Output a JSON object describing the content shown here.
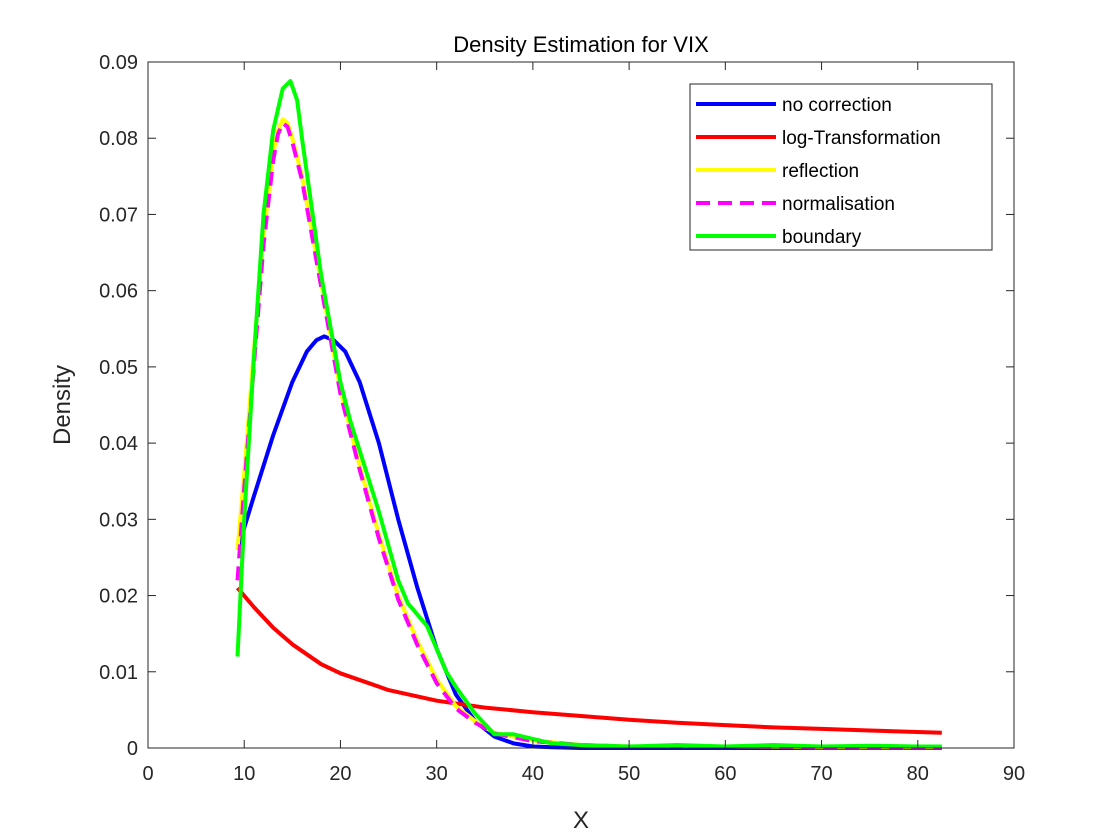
{
  "chart_data": {
    "type": "line",
    "title": "Density Estimation for VIX",
    "xlabel": "X",
    "ylabel": "Density",
    "xlim": [
      0,
      90
    ],
    "ylim": [
      0,
      0.09
    ],
    "xticks": [
      0,
      10,
      20,
      30,
      40,
      50,
      60,
      70,
      80,
      90
    ],
    "yticks": [
      0,
      0.01,
      0.02,
      0.03,
      0.04,
      0.05,
      0.06,
      0.07,
      0.08,
      0.09
    ],
    "xtick_labels": [
      "0",
      "10",
      "20",
      "30",
      "40",
      "50",
      "60",
      "70",
      "80",
      "90"
    ],
    "ytick_labels": [
      "0",
      "0.01",
      "0.02",
      "0.03",
      "0.04",
      "0.05",
      "0.06",
      "0.07",
      "0.08",
      "0.09"
    ],
    "grid": false,
    "legend_position": "top-right",
    "series": [
      {
        "name": "no correction",
        "color": "#0000ff",
        "dash": "solid",
        "x": [
          9.3,
          11,
          13,
          15,
          16.5,
          17.5,
          18.3,
          19.3,
          20.5,
          22,
          24,
          26,
          28,
          30,
          32,
          34,
          36,
          38,
          40,
          42,
          45,
          50,
          60,
          70,
          82.5
        ],
        "y": [
          0.026,
          0.033,
          0.041,
          0.048,
          0.052,
          0.0535,
          0.054,
          0.0535,
          0.052,
          0.048,
          0.04,
          0.03,
          0.021,
          0.013,
          0.007,
          0.0035,
          0.0015,
          0.0006,
          0.0002,
          0.0001,
          0.0,
          0.0,
          0.0,
          0.0,
          0.0
        ]
      },
      {
        "name": "log-Transformation",
        "color": "#ff0000",
        "dash": "solid",
        "x": [
          9.3,
          11,
          13,
          15,
          18,
          20,
          25,
          30,
          35,
          40,
          45,
          50,
          55,
          60,
          65,
          70,
          75,
          82.5
        ],
        "y": [
          0.021,
          0.0185,
          0.0158,
          0.0136,
          0.011,
          0.0098,
          0.0076,
          0.0062,
          0.0053,
          0.0047,
          0.0042,
          0.0037,
          0.0033,
          0.003,
          0.0027,
          0.0025,
          0.0023,
          0.002
        ]
      },
      {
        "name": "reflection",
        "color": "#ffff00",
        "dash": "solid",
        "x": [
          9.3,
          10,
          11,
          12,
          13,
          13.5,
          14,
          14.5,
          15,
          16,
          17,
          18,
          19,
          20,
          22,
          24,
          26,
          28,
          30,
          32,
          34,
          36,
          38,
          40,
          45,
          50,
          60,
          70,
          82.5
        ],
        "y": [
          0.026,
          0.036,
          0.052,
          0.067,
          0.078,
          0.081,
          0.0825,
          0.082,
          0.08,
          0.075,
          0.068,
          0.061,
          0.054,
          0.047,
          0.037,
          0.028,
          0.02,
          0.014,
          0.009,
          0.0055,
          0.0035,
          0.002,
          0.0015,
          0.001,
          0.0004,
          0.0002,
          0.0002,
          0.0001,
          0.0001
        ]
      },
      {
        "name": "normalisation",
        "color": "#ff00ff",
        "dash": "dashed",
        "x": [
          9.3,
          10,
          11,
          12,
          13,
          13.5,
          14,
          14.5,
          15,
          16,
          17,
          18,
          19,
          20,
          22,
          24,
          26,
          28,
          30,
          32,
          34,
          36,
          38,
          40,
          45,
          50,
          60,
          70,
          82.5
        ],
        "y": [
          0.022,
          0.034,
          0.05,
          0.066,
          0.077,
          0.0805,
          0.082,
          0.0815,
          0.0795,
          0.0745,
          0.0675,
          0.0605,
          0.0535,
          0.0465,
          0.0365,
          0.0275,
          0.0195,
          0.0135,
          0.0085,
          0.0052,
          0.0033,
          0.0019,
          0.0014,
          0.0009,
          0.0004,
          0.0002,
          0.0002,
          0.0001,
          0.0001
        ]
      },
      {
        "name": "boundary",
        "color": "#00ff00",
        "dash": "solid",
        "x": [
          9.3,
          10,
          11,
          12,
          13,
          14,
          14.8,
          15.5,
          16,
          17,
          18,
          19,
          20,
          21,
          22,
          24,
          26,
          27,
          28,
          29,
          30,
          31,
          32,
          34,
          36,
          38,
          40,
          42,
          45,
          50,
          55,
          60,
          65,
          70,
          75,
          80,
          82.5
        ],
        "y": [
          0.012,
          0.03,
          0.051,
          0.07,
          0.081,
          0.0865,
          0.0875,
          0.085,
          0.08,
          0.071,
          0.062,
          0.055,
          0.048,
          0.043,
          0.039,
          0.031,
          0.022,
          0.019,
          0.0175,
          0.016,
          0.013,
          0.01,
          0.008,
          0.0045,
          0.0018,
          0.0018,
          0.0012,
          0.0006,
          0.0004,
          0.0002,
          0.0004,
          0.0002,
          0.0004,
          0.0002,
          0.0003,
          0.0002,
          0.0002
        ]
      }
    ]
  }
}
